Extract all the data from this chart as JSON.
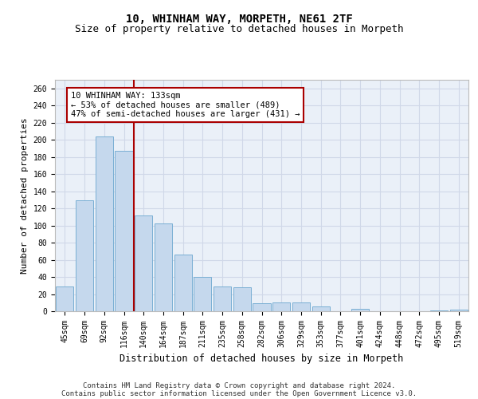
{
  "title1": "10, WHINHAM WAY, MORPETH, NE61 2TF",
  "title2": "Size of property relative to detached houses in Morpeth",
  "xlabel": "Distribution of detached houses by size in Morpeth",
  "ylabel": "Number of detached properties",
  "categories": [
    "45sqm",
    "69sqm",
    "92sqm",
    "116sqm",
    "140sqm",
    "164sqm",
    "187sqm",
    "211sqm",
    "235sqm",
    "258sqm",
    "282sqm",
    "306sqm",
    "329sqm",
    "353sqm",
    "377sqm",
    "401sqm",
    "424sqm",
    "448sqm",
    "472sqm",
    "495sqm",
    "519sqm"
  ],
  "values": [
    29,
    129,
    204,
    187,
    112,
    102,
    66,
    40,
    29,
    28,
    9,
    10,
    10,
    6,
    0,
    3,
    0,
    0,
    0,
    1,
    2
  ],
  "bar_color": "#c5d8ed",
  "bar_edge_color": "#7aafd4",
  "vline_color": "#aa0000",
  "annotation_text": "10 WHINHAM WAY: 133sqm\n← 53% of detached houses are smaller (489)\n47% of semi-detached houses are larger (431) →",
  "annotation_box_color": "#ffffff",
  "annotation_box_edge": "#aa0000",
  "ylim": [
    0,
    270
  ],
  "yticks": [
    0,
    20,
    40,
    60,
    80,
    100,
    120,
    140,
    160,
    180,
    200,
    220,
    240,
    260
  ],
  "grid_color": "#d0d8e8",
  "background_color": "#eaf0f8",
  "footer_line1": "Contains HM Land Registry data © Crown copyright and database right 2024.",
  "footer_line2": "Contains public sector information licensed under the Open Government Licence v3.0.",
  "title1_fontsize": 10,
  "title2_fontsize": 9,
  "xlabel_fontsize": 8.5,
  "ylabel_fontsize": 8,
  "tick_fontsize": 7,
  "footer_fontsize": 6.5,
  "annot_fontsize": 7.5
}
